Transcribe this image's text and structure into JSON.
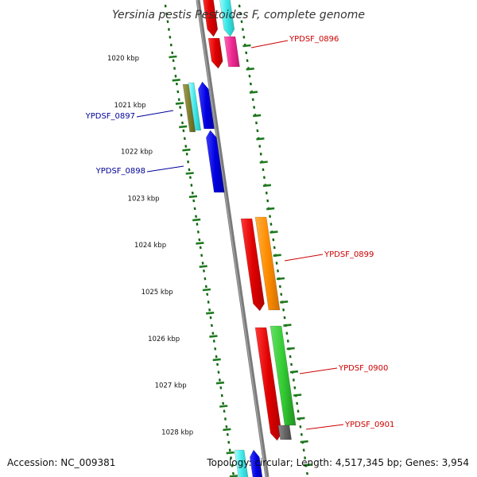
{
  "title": "Yersinia pestis Pestoides F, complete genome",
  "footer": {
    "accession": "Accession: NC_009381",
    "topology": "Topology: circular; Length: 4,517,345 bp; Genes: 3,954"
  },
  "scale_labels": [
    "1020 kbp",
    "1021 kbp",
    "1022 kbp",
    "1023 kbp",
    "1024 kbp",
    "1025 kbp",
    "1026 kbp",
    "1027 kbp",
    "1028 kbp"
  ],
  "gene_labels": {
    "g0896": "YPDSF_0896",
    "g0897": "YPDSF_0897",
    "g0898": "YPDSF_0898",
    "g0899": "YPDSF_0899",
    "g0900": "YPDSF_0900",
    "g0901": "YPDSF_0901"
  },
  "colors": {
    "forward_label": "#cc0000",
    "reverse_label": "#000099",
    "backbone": "#808080",
    "ticks": "#116611"
  }
}
